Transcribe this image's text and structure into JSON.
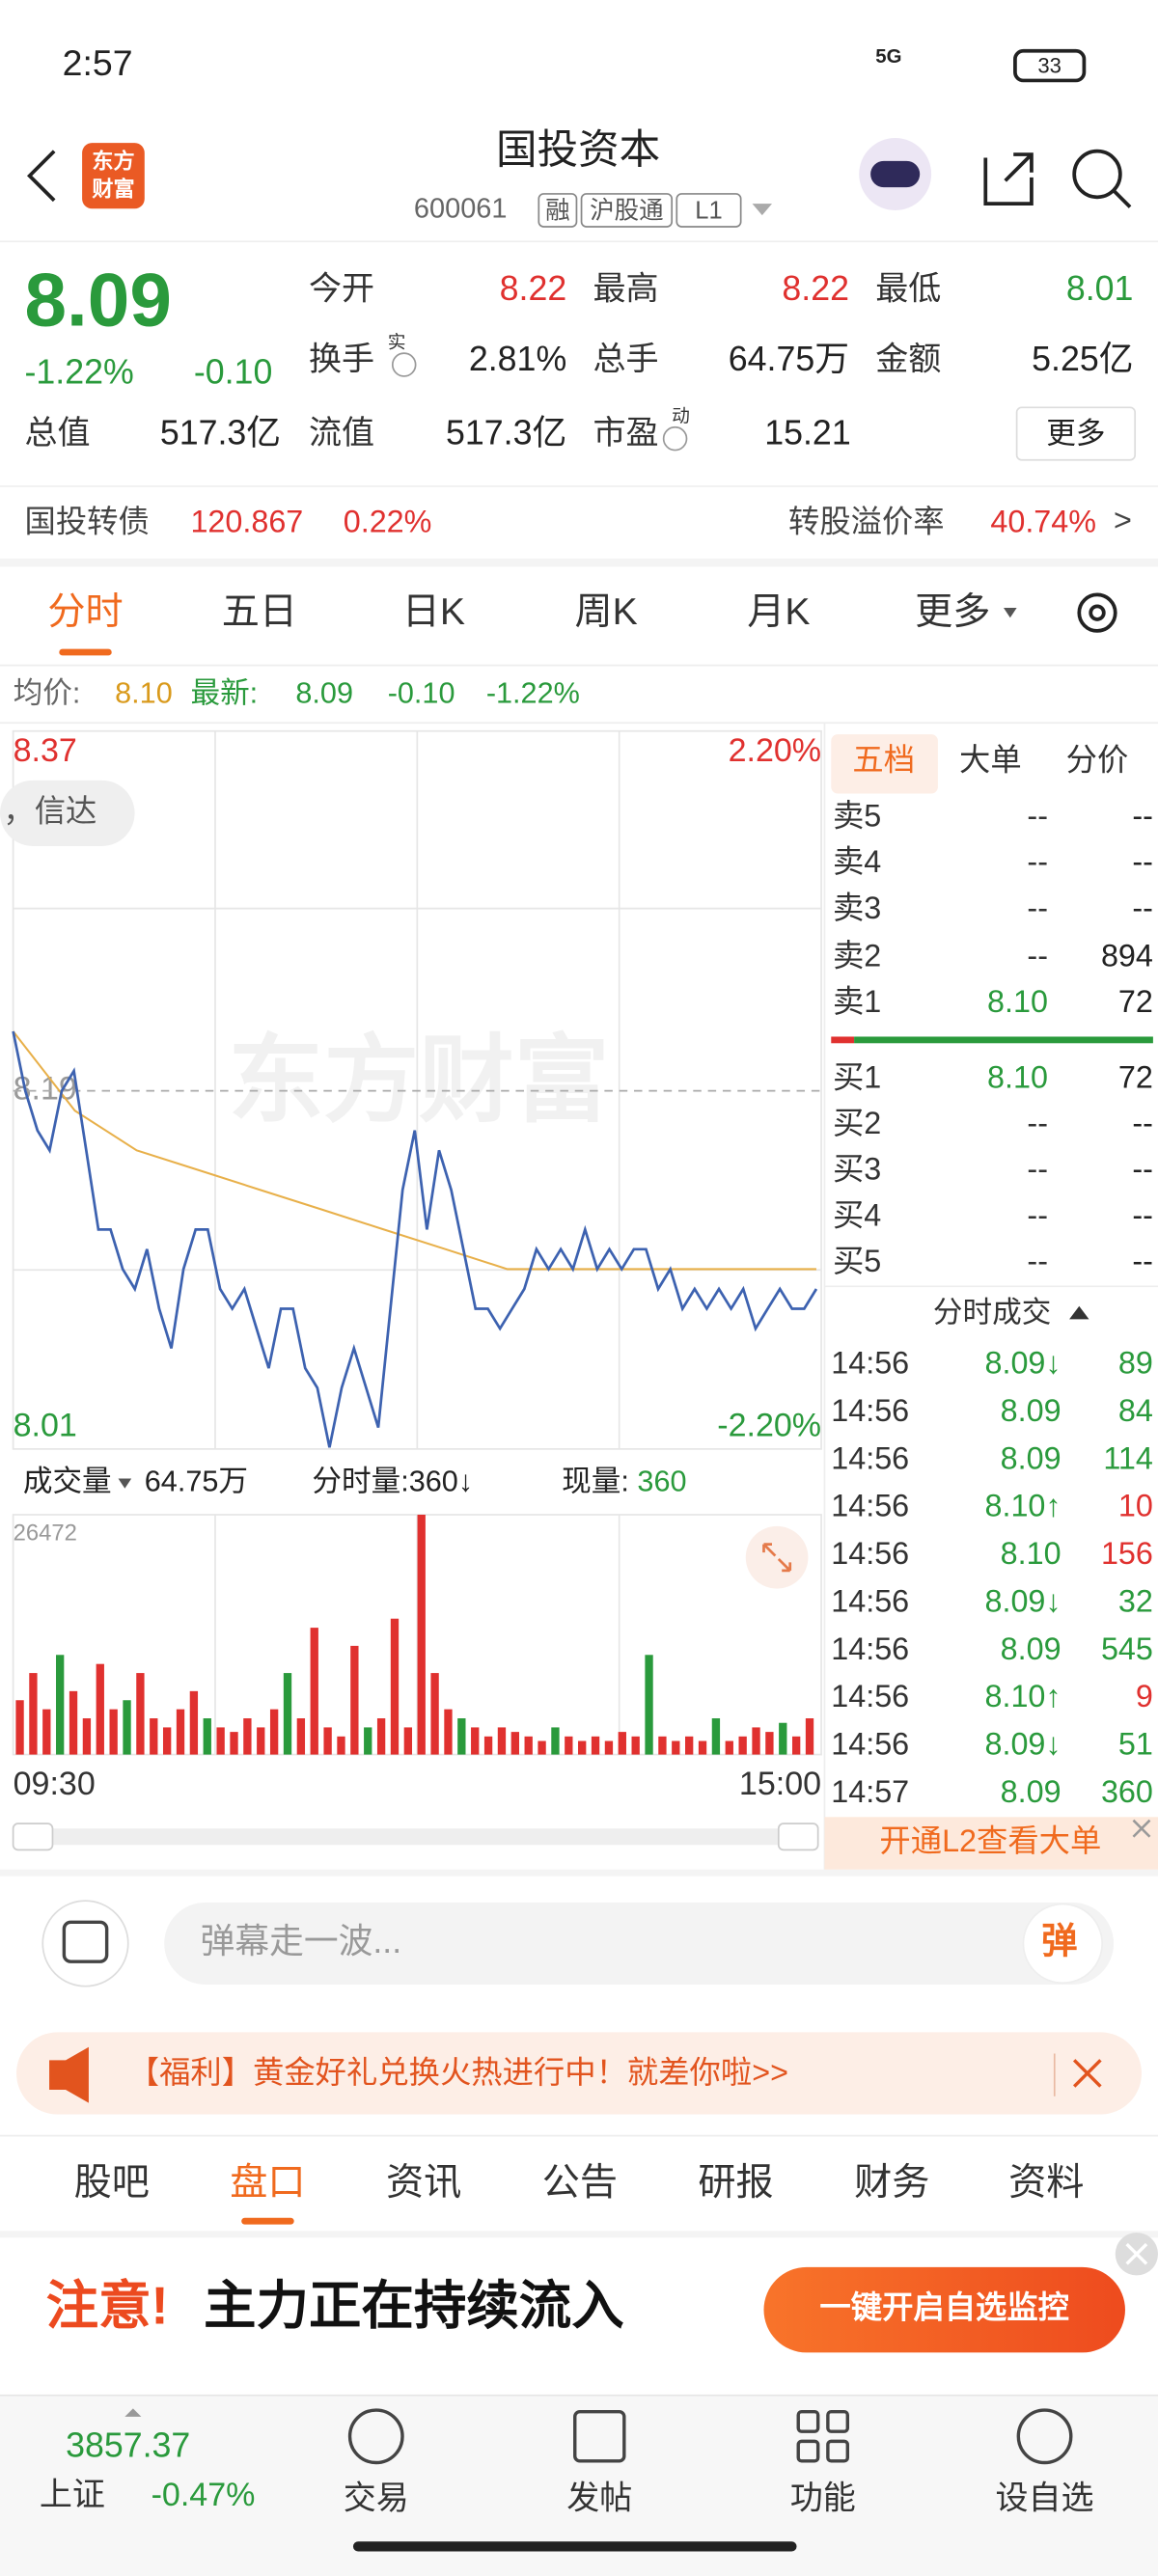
{
  "status": {
    "time": "2:57",
    "network": "5G",
    "battery": "33"
  },
  "header": {
    "logo": [
      "东方",
      "财富"
    ],
    "title": "国投资本",
    "code": "600061",
    "tags": [
      "融",
      "沪股通",
      "L1"
    ]
  },
  "quote": {
    "price": "8.09",
    "change_pct": "-1.22%",
    "change": "-0.10",
    "fields": [
      {
        "label": "今开",
        "value": "8.22",
        "color": "#e0312f"
      },
      {
        "label": "最高",
        "value": "8.22",
        "color": "#e0312f"
      },
      {
        "label": "最低",
        "value": "8.01",
        "color": "#2a9a3c"
      },
      {
        "label": "换手",
        "sup": "实",
        "value": "2.81%",
        "color": "#222222"
      },
      {
        "label": "总手",
        "value": "64.75万",
        "color": "#222222"
      },
      {
        "label": "金额",
        "value": "5.25亿",
        "color": "#222222"
      },
      {
        "label": "总值",
        "value": "517.3亿",
        "color": "#222222"
      },
      {
        "label": "流值",
        "value": "517.3亿",
        "color": "#222222"
      },
      {
        "label": "市盈",
        "sup": "动",
        "value": "15.21",
        "color": "#222222"
      }
    ],
    "more": "更多"
  },
  "bond": {
    "name": "国投转债",
    "price": "120.867",
    "pct": "0.22%",
    "premium_label": "转股溢价率",
    "premium": "40.74%",
    "arrow": ">"
  },
  "tabs": [
    "分时",
    "五日",
    "日K",
    "周K",
    "月K",
    "更多"
  ],
  "legend": {
    "avg_label": "均价:",
    "avg": "8.10",
    "latest_label": "最新:",
    "latest": "8.09",
    "change": "-0.10",
    "change_pct": "-1.22%"
  },
  "overlay": {
    "badge": "，信达",
    "watermark": "东方财富"
  },
  "chart_data": [
    {
      "type": "line",
      "ylim": [
        8.01,
        8.37
      ],
      "yticks": [
        8.01,
        8.19,
        8.37
      ],
      "y2lim": [
        -2.2,
        2.2
      ],
      "y2ticks": [
        {
          "value": -2.2,
          "label": "-2.20%"
        },
        {
          "value": 2.2,
          "label": "2.20%"
        }
      ],
      "series": [
        {
          "color": "#3d62b0",
          "values": [
            8.22,
            8.19,
            8.17,
            8.16,
            8.19,
            8.2,
            8.16,
            8.12,
            8.12,
            8.1,
            8.09,
            8.11,
            8.08,
            8.06,
            8.1,
            8.12,
            8.12,
            8.09,
            8.08,
            8.09,
            8.07,
            8.05,
            8.08,
            8.08,
            8.05,
            8.04,
            8.01,
            8.04,
            8.06,
            8.04,
            8.02,
            8.08,
            8.14,
            8.17,
            8.12,
            8.16,
            8.14,
            8.11,
            8.08,
            8.08,
            8.07,
            8.08,
            8.09,
            8.11,
            8.1,
            8.11,
            8.1,
            8.12,
            8.1,
            8.11,
            8.1,
            8.11,
            8.11,
            8.09,
            8.1,
            8.08,
            8.09,
            8.08,
            8.09,
            8.08,
            8.09,
            8.07,
            8.08,
            8.09,
            8.08,
            8.08,
            8.09
          ]
        },
        {
          "color": "#e8b04a",
          "values": [
            8.22,
            8.18,
            8.16,
            8.15,
            8.14,
            8.13,
            8.12,
            8.11,
            8.1,
            8.1,
            8.1,
            8.1,
            8.1,
            8.1
          ]
        }
      ]
    },
    {
      "type": "bar",
      "header": {
        "label": "成交量",
        "total": "64.75万",
        "period": "分时量:360↓",
        "current_label": "现量:",
        "current": "360"
      },
      "xlim": [
        0,
        240
      ],
      "xticks": [
        {
          "value": 0,
          "label": "09:30"
        },
        {
          "value": 240,
          "label": "15:00"
        }
      ],
      "ylim": [
        0,
        26472
      ],
      "yticks": [
        26472
      ],
      "series": [
        {
          "color": "#e0312f",
          "values": [
            6000,
            9000,
            5000,
            null,
            7000,
            4000,
            10000,
            5000,
            null,
            9000,
            4000,
            3000,
            5000,
            7000,
            null,
            3000,
            2500,
            4000,
            3000,
            5000,
            null,
            4000,
            14000,
            3000,
            2000,
            12000,
            null,
            4000,
            15000,
            3000,
            26472,
            9000,
            5000,
            null,
            3000,
            2000,
            3000,
            2500,
            2000,
            1500,
            null,
            2000,
            1500,
            2000,
            1500,
            2500,
            2000,
            null,
            2000,
            1500,
            2000,
            1500,
            null,
            1500,
            2000,
            3000,
            2500,
            null,
            2000,
            4000
          ]
        },
        {
          "color": "#2a9a3c",
          "values": [
            null,
            null,
            null,
            11000,
            null,
            null,
            null,
            null,
            6000,
            null,
            null,
            null,
            null,
            null,
            4000,
            null,
            null,
            null,
            null,
            null,
            9000,
            null,
            null,
            null,
            null,
            null,
            3000,
            null,
            null,
            null,
            null,
            null,
            null,
            4000,
            null,
            null,
            null,
            null,
            null,
            null,
            3000,
            null,
            null,
            null,
            null,
            null,
            null,
            11000,
            null,
            null,
            null,
            null,
            4000,
            null,
            null,
            null,
            null,
            3500,
            null,
            null
          ]
        }
      ]
    }
  ],
  "order_book": {
    "tabs": [
      "五档",
      "大单",
      "分价"
    ],
    "asks": [
      [
        "卖5",
        "--",
        "--"
      ],
      [
        "卖4",
        "--",
        "--"
      ],
      [
        "卖3",
        "--",
        "--"
      ],
      [
        "卖2",
        "--",
        "894"
      ],
      [
        "卖1",
        "8.10",
        "72"
      ]
    ],
    "bids": [
      [
        "买1",
        "8.10",
        "72"
      ],
      [
        "买2",
        "--",
        "--"
      ],
      [
        "买3",
        "--",
        "--"
      ],
      [
        "买4",
        "--",
        "--"
      ],
      [
        "买5",
        "--",
        "--"
      ]
    ],
    "trades_title": "分时成交",
    "trades": [
      {
        "time": "14:56",
        "price": "8.09↓",
        "volume": "89",
        "color": "#2a9a3c"
      },
      {
        "time": "14:56",
        "price": "8.09",
        "volume": "84",
        "color": "#2a9a3c"
      },
      {
        "time": "14:56",
        "price": "8.09",
        "volume": "114",
        "color": "#2a9a3c"
      },
      {
        "time": "14:56",
        "price": "8.10↑",
        "volume": "10",
        "color": "#e0312f"
      },
      {
        "time": "14:56",
        "price": "8.10",
        "volume": "156",
        "color": "#e0312f"
      },
      {
        "time": "14:56",
        "price": "8.09↓",
        "volume": "32",
        "color": "#2a9a3c"
      },
      {
        "time": "14:56",
        "price": "8.09",
        "volume": "545",
        "color": "#2a9a3c"
      },
      {
        "time": "14:56",
        "price": "8.10↑",
        "volume": "9",
        "color": "#e0312f"
      },
      {
        "time": "14:56",
        "price": "8.09↓",
        "volume": "51",
        "color": "#2a9a3c"
      },
      {
        "time": "14:57",
        "price": "8.09",
        "volume": "360",
        "color": "#2a9a3c"
      }
    ],
    "l2": "开通L2查看大单"
  },
  "comment": {
    "placeholder": "弹幕走一波...",
    "button": "弹"
  },
  "banner": "【福利】黄金好礼兑换火热进行中！就差你啦>>",
  "section_tabs": [
    "股吧",
    "盘口",
    "资讯",
    "公告",
    "研报",
    "财务",
    "资料"
  ],
  "ad": {
    "alert": "注意!",
    "text": "主力正在持续流入",
    "button": "一键开启自选监控"
  },
  "bottom": {
    "index_value": "3857.37",
    "index_name": "上证",
    "index_pct": "-0.47%",
    "items": [
      "交易",
      "发帖",
      "功能",
      "设自选"
    ]
  }
}
